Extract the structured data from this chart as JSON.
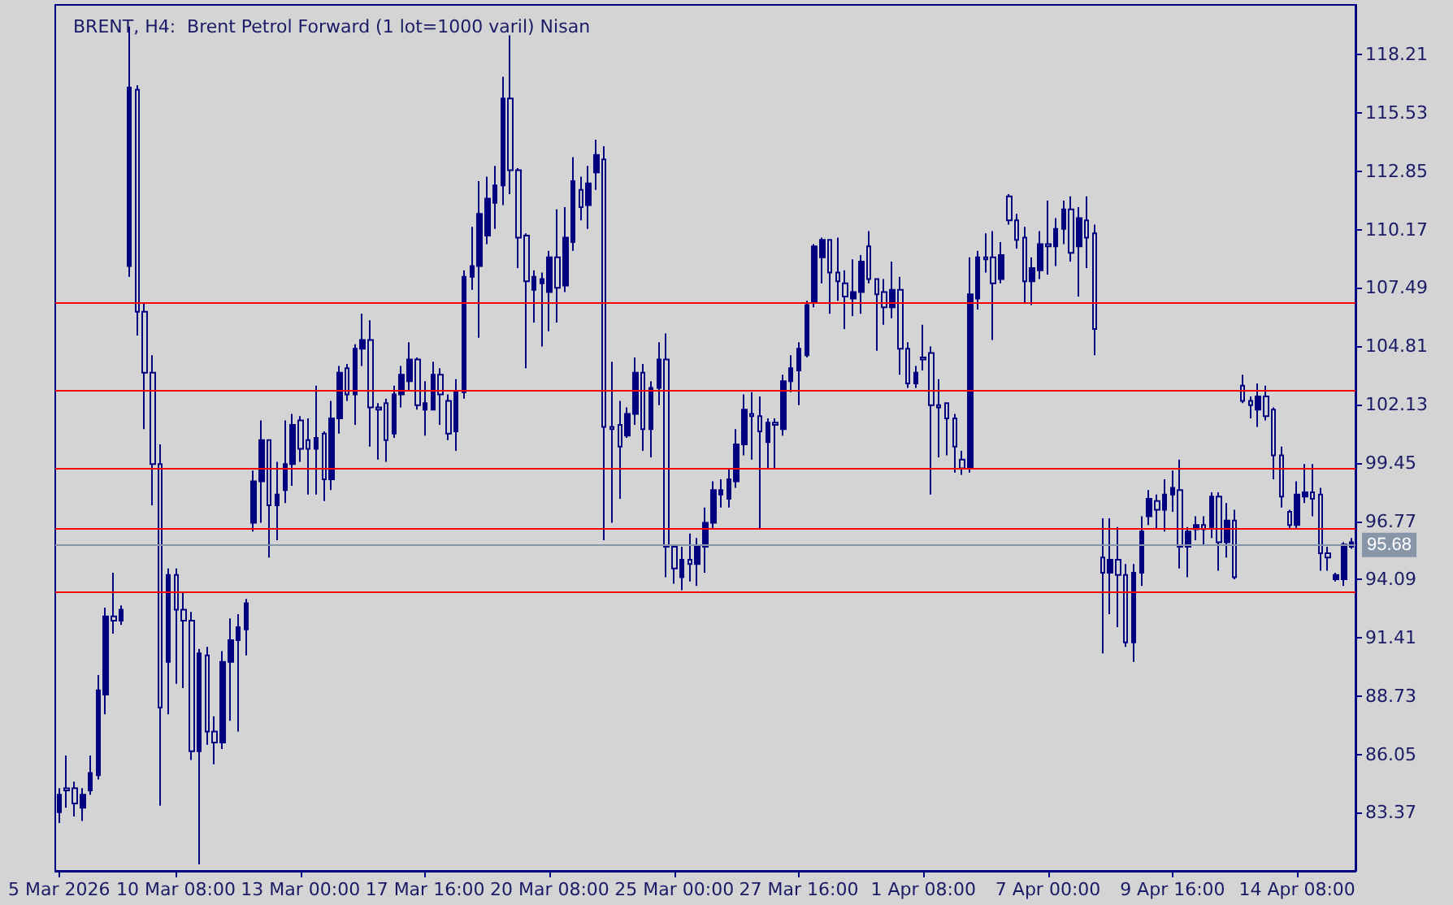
{
  "chart_data": {
    "type": "candlestick",
    "title": "BRENT, H4:  Brent Petrol Forward (1 lot=1000 varil) Nisan",
    "color": "#000080",
    "categories": [
      "5 Mar 2026",
      null,
      null,
      null,
      null,
      null,
      null,
      null,
      null,
      null,
      null,
      null,
      null,
      null,
      null,
      "10 Mar 08:00",
      null,
      null,
      null,
      null,
      null,
      null,
      null,
      null,
      null,
      null,
      null,
      null,
      null,
      null,
      null,
      "13 Mar 00:00",
      null,
      null,
      null,
      null,
      null,
      null,
      null,
      null,
      null,
      null,
      null,
      null,
      null,
      null,
      null,
      "17 Mar 16:00",
      null,
      null,
      null,
      null,
      null,
      null,
      null,
      null,
      null,
      null,
      null,
      null,
      null,
      null,
      null,
      "20 Mar 08:00",
      null,
      null,
      null,
      null,
      null,
      null,
      null,
      null,
      null,
      null,
      null,
      null,
      null,
      null,
      null,
      "25 Mar 00:00",
      null,
      null,
      null,
      null,
      null,
      null,
      null,
      null,
      null,
      null,
      null,
      null,
      null,
      null,
      null,
      "27 Mar 16:00",
      null,
      null,
      null,
      null,
      null,
      null,
      null,
      null,
      null,
      null,
      null,
      null,
      null,
      null,
      null,
      "1 Apr 08:00",
      null,
      null,
      null,
      null,
      null,
      null,
      null,
      null,
      null,
      null,
      null,
      null,
      null,
      null,
      null,
      "7 Apr 00:00",
      null,
      null,
      null,
      null,
      null,
      null,
      null,
      null,
      null,
      null,
      null,
      null,
      null,
      null,
      null,
      "9 Apr 16:00",
      null,
      null,
      null,
      null,
      null,
      null,
      null,
      null,
      null,
      null,
      null,
      null,
      null,
      null,
      null,
      "14 Apr 08:00",
      null,
      null,
      null,
      null,
      null,
      null,
      null
    ],
    "ohlc": [
      [
        83.4,
        84.5,
        82.9,
        84.2
      ],
      [
        84.5,
        86.0,
        83.6,
        84.4
      ],
      [
        84.5,
        84.8,
        83.2,
        83.8
      ],
      [
        83.6,
        84.5,
        83.0,
        84.2
      ],
      [
        84.4,
        86.0,
        84.2,
        85.2
      ],
      [
        85.1,
        89.7,
        84.9,
        89.0
      ],
      [
        88.8,
        92.8,
        87.9,
        92.4
      ],
      [
        92.4,
        94.4,
        91.6,
        92.2
      ],
      [
        92.2,
        92.9,
        92.0,
        92.7
      ],
      [
        108.5,
        119.5,
        108.0,
        116.7
      ],
      [
        116.6,
        116.8,
        105.3,
        106.4
      ],
      [
        106.4,
        106.8,
        101.0,
        103.6
      ],
      [
        103.6,
        104.4,
        97.5,
        99.4
      ],
      [
        99.4,
        100.3,
        83.7,
        88.2
      ],
      [
        90.3,
        94.6,
        87.9,
        94.3
      ],
      [
        94.3,
        94.6,
        89.3,
        92.7
      ],
      [
        92.7,
        93.5,
        89.1,
        92.2
      ],
      [
        92.2,
        92.6,
        85.8,
        86.2
      ],
      [
        86.2,
        90.9,
        81.0,
        90.7
      ],
      [
        90.6,
        91.0,
        86.5,
        87.1
      ],
      [
        87.1,
        87.8,
        85.6,
        86.6
      ],
      [
        86.6,
        90.8,
        86.3,
        90.3
      ],
      [
        90.3,
        92.3,
        87.6,
        91.3
      ],
      [
        91.3,
        92.5,
        87.1,
        91.9
      ],
      [
        91.8,
        93.2,
        90.6,
        93.0
      ],
      [
        96.7,
        99.1,
        96.3,
        98.6
      ],
      [
        98.6,
        101.4,
        96.7,
        100.5
      ],
      [
        100.5,
        100.5,
        95.1,
        97.5
      ],
      [
        97.5,
        99.5,
        95.9,
        98.0
      ],
      [
        98.2,
        101.4,
        97.6,
        99.4
      ],
      [
        99.4,
        101.7,
        98.4,
        101.2
      ],
      [
        101.4,
        101.6,
        99.5,
        100.1
      ],
      [
        100.5,
        101.5,
        98.0,
        100.1
      ],
      [
        100.1,
        103.0,
        98.0,
        100.6
      ],
      [
        100.8,
        100.9,
        97.7,
        98.7
      ],
      [
        98.7,
        102.3,
        98.2,
        101.5
      ],
      [
        101.5,
        103.9,
        100.8,
        103.6
      ],
      [
        103.8,
        104.0,
        102.3,
        102.6
      ],
      [
        102.6,
        104.9,
        101.2,
        104.7
      ],
      [
        104.7,
        106.3,
        103.9,
        105.1
      ],
      [
        105.1,
        106.0,
        100.2,
        102.0
      ],
      [
        102.0,
        102.2,
        99.6,
        101.9
      ],
      [
        102.2,
        102.4,
        99.5,
        100.5
      ],
      [
        100.8,
        103.0,
        100.6,
        102.6
      ],
      [
        102.6,
        103.9,
        102.0,
        103.5
      ],
      [
        103.2,
        105.0,
        102.8,
        104.2
      ],
      [
        104.2,
        104.3,
        101.9,
        102.1
      ],
      [
        101.9,
        103.2,
        100.7,
        102.2
      ],
      [
        101.9,
        104.1,
        101.9,
        103.5
      ],
      [
        103.5,
        103.8,
        101.2,
        102.6
      ],
      [
        102.3,
        102.6,
        100.5,
        100.8
      ],
      [
        100.9,
        103.3,
        100.0,
        102.7
      ],
      [
        102.7,
        108.3,
        102.4,
        108.0
      ],
      [
        108.0,
        110.3,
        107.4,
        108.5
      ],
      [
        108.5,
        112.4,
        105.2,
        110.9
      ],
      [
        109.9,
        112.6,
        109.5,
        111.6
      ],
      [
        111.4,
        113.1,
        110.2,
        112.2
      ],
      [
        112.2,
        117.2,
        111.3,
        116.2
      ],
      [
        116.2,
        119.1,
        111.8,
        112.9
      ],
      [
        112.9,
        113.0,
        108.4,
        109.8
      ],
      [
        109.9,
        110.0,
        103.8,
        107.8
      ],
      [
        107.4,
        108.3,
        105.9,
        108.0
      ],
      [
        107.7,
        108.2,
        104.8,
        107.9
      ],
      [
        107.3,
        109.2,
        105.5,
        108.9
      ],
      [
        108.9,
        111.1,
        105.9,
        107.5
      ],
      [
        107.6,
        111.2,
        107.3,
        109.8
      ],
      [
        109.6,
        113.5,
        109.2,
        112.4
      ],
      [
        112.0,
        112.6,
        110.6,
        111.2
      ],
      [
        111.3,
        113.1,
        110.2,
        112.3
      ],
      [
        112.8,
        114.3,
        112.0,
        113.6
      ],
      [
        113.4,
        114.0,
        95.9,
        101.1
      ],
      [
        101.1,
        104.1,
        96.7,
        101.0
      ],
      [
        101.2,
        102.3,
        97.8,
        100.2
      ],
      [
        100.7,
        102.0,
        100.6,
        101.7
      ],
      [
        101.7,
        104.3,
        101.2,
        103.6
      ],
      [
        103.6,
        104.0,
        100.0,
        101.0
      ],
      [
        101.0,
        103.2,
        99.7,
        102.9
      ],
      [
        102.9,
        105.0,
        102.1,
        104.2
      ],
      [
        104.2,
        105.4,
        94.2,
        95.6
      ],
      [
        95.6,
        95.7,
        93.9,
        94.6
      ],
      [
        94.2,
        95.6,
        93.6,
        95.0
      ],
      [
        95.0,
        96.2,
        94.0,
        94.8
      ],
      [
        94.8,
        96.0,
        93.8,
        95.6
      ],
      [
        95.6,
        97.4,
        94.4,
        96.7
      ],
      [
        96.7,
        98.6,
        96.4,
        98.2
      ],
      [
        98.0,
        98.7,
        97.4,
        98.2
      ],
      [
        97.8,
        99.2,
        97.4,
        98.7
      ],
      [
        98.6,
        101.0,
        98.3,
        100.3
      ],
      [
        100.3,
        102.6,
        99.8,
        101.9
      ],
      [
        101.7,
        102.7,
        99.6,
        101.6
      ],
      [
        101.6,
        102.5,
        96.4,
        100.9
      ],
      [
        100.4,
        101.5,
        99.2,
        101.3
      ],
      [
        101.3,
        101.5,
        99.2,
        101.2
      ],
      [
        101.0,
        103.5,
        100.7,
        103.2
      ],
      [
        103.2,
        104.4,
        102.7,
        103.8
      ],
      [
        103.7,
        105.0,
        102.1,
        104.7
      ],
      [
        104.4,
        106.9,
        104.3,
        106.7
      ],
      [
        106.8,
        109.5,
        106.6,
        109.4
      ],
      [
        108.9,
        109.8,
        107.7,
        109.7
      ],
      [
        109.7,
        109.7,
        106.3,
        108.2
      ],
      [
        108.2,
        109.8,
        106.9,
        107.8
      ],
      [
        107.7,
        108.3,
        105.6,
        107.1
      ],
      [
        107.0,
        108.8,
        106.2,
        107.3
      ],
      [
        107.3,
        109.0,
        106.3,
        108.7
      ],
      [
        109.4,
        110.1,
        107.7,
        107.9
      ],
      [
        107.9,
        107.9,
        104.6,
        107.2
      ],
      [
        107.3,
        107.9,
        105.8,
        106.6
      ],
      [
        106.6,
        108.7,
        106.1,
        107.4
      ],
      [
        107.4,
        108.0,
        103.5,
        104.7
      ],
      [
        104.7,
        105.0,
        102.9,
        103.1
      ],
      [
        103.1,
        103.9,
        102.9,
        103.6
      ],
      [
        104.3,
        105.8,
        103.7,
        104.2
      ],
      [
        104.5,
        104.8,
        98.0,
        102.1
      ],
      [
        102.1,
        103.3,
        99.7,
        102.0
      ],
      [
        102.2,
        102.2,
        99.8,
        101.5
      ],
      [
        101.5,
        101.7,
        99.0,
        100.2
      ],
      [
        99.6,
        100.0,
        98.9,
        99.2
      ],
      [
        99.2,
        108.9,
        99.0,
        107.2
      ],
      [
        107.0,
        109.2,
        106.5,
        108.9
      ],
      [
        108.9,
        110.0,
        108.2,
        108.8
      ],
      [
        108.9,
        110.1,
        105.1,
        107.7
      ],
      [
        107.9,
        109.6,
        107.7,
        109.0
      ],
      [
        111.7,
        111.8,
        110.4,
        110.6
      ],
      [
        110.6,
        110.9,
        109.3,
        109.7
      ],
      [
        109.8,
        110.3,
        106.8,
        107.8
      ],
      [
        107.8,
        108.9,
        106.7,
        108.4
      ],
      [
        108.3,
        110.1,
        107.9,
        109.5
      ],
      [
        109.5,
        111.5,
        108.1,
        109.4
      ],
      [
        109.4,
        110.7,
        108.5,
        110.2
      ],
      [
        110.2,
        111.5,
        109.5,
        111.1
      ],
      [
        111.1,
        111.7,
        108.7,
        109.1
      ],
      [
        109.4,
        111.2,
        107.1,
        110.7
      ],
      [
        110.6,
        111.7,
        108.4,
        109.8
      ],
      [
        110.0,
        110.4,
        104.4,
        105.6
      ],
      [
        95.1,
        96.9,
        90.7,
        94.4
      ],
      [
        94.4,
        96.9,
        92.5,
        95.0
      ],
      [
        95.0,
        96.5,
        91.9,
        94.3
      ],
      [
        94.3,
        94.8,
        91.0,
        91.2
      ],
      [
        91.2,
        94.8,
        90.3,
        94.4
      ],
      [
        94.4,
        97.0,
        93.8,
        96.3
      ],
      [
        97.0,
        98.2,
        96.6,
        97.8
      ],
      [
        97.7,
        98.0,
        96.4,
        97.3
      ],
      [
        97.3,
        98.7,
        96.3,
        98.0
      ],
      [
        98.0,
        99.1,
        97.2,
        98.3
      ],
      [
        98.2,
        99.6,
        94.6,
        95.6
      ],
      [
        95.6,
        96.5,
        94.2,
        96.3
      ],
      [
        96.4,
        97.0,
        95.9,
        96.6
      ],
      [
        96.6,
        97.0,
        95.7,
        96.4
      ],
      [
        96.5,
        98.1,
        96.0,
        97.9
      ],
      [
        97.9,
        98.1,
        94.5,
        95.8
      ],
      [
        95.8,
        97.6,
        95.1,
        96.8
      ],
      [
        96.8,
        97.3,
        94.1,
        94.2
      ],
      [
        103.0,
        103.5,
        102.2,
        102.3
      ],
      [
        102.3,
        102.5,
        101.5,
        102.1
      ],
      [
        101.9,
        103.1,
        101.1,
        102.5
      ],
      [
        102.5,
        103.0,
        101.4,
        101.6
      ],
      [
        101.9,
        102.0,
        98.7,
        99.8
      ],
      [
        99.8,
        100.2,
        97.4,
        97.9
      ],
      [
        97.2,
        97.3,
        96.4,
        96.6
      ],
      [
        96.6,
        98.6,
        96.4,
        98.0
      ],
      [
        97.9,
        99.4,
        97.6,
        98.1
      ],
      [
        98.1,
        99.4,
        97.0,
        97.8
      ],
      [
        98.0,
        98.3,
        94.5,
        95.3
      ],
      [
        95.3,
        95.6,
        94.5,
        95.1
      ],
      [
        94.1,
        94.4,
        94.0,
        94.3
      ],
      [
        94.1,
        95.8,
        93.8,
        95.7
      ],
      [
        95.6,
        96.0,
        95.5,
        95.8
      ]
    ],
    "ylim": [
      80.7,
      120.5
    ],
    "yticks": [
      83.37,
      86.05,
      88.73,
      91.41,
      94.09,
      96.77,
      99.45,
      102.13,
      104.81,
      107.49,
      110.17,
      112.85,
      115.53,
      118.21
    ],
    "ref_lines": [
      {
        "axis": "y",
        "value": 106.8,
        "color": "#ff0000"
      },
      {
        "axis": "y",
        "value": 102.8,
        "color": "#ff0000"
      },
      {
        "axis": "y",
        "value": 99.2,
        "color": "#ff0000"
      },
      {
        "axis": "y",
        "value": 96.45,
        "color": "#ff0000"
      },
      {
        "axis": "y",
        "value": 93.55,
        "color": "#ff0000"
      },
      {
        "axis": "y",
        "value": 95.68,
        "label": "95.68",
        "color": "#8796a8"
      }
    ]
  }
}
